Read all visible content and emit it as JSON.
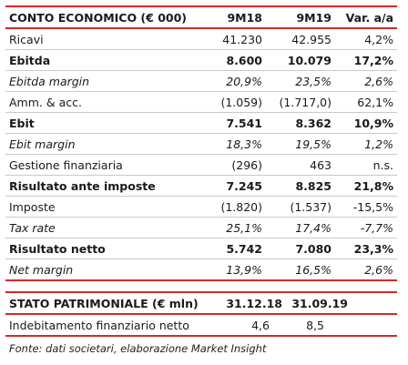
{
  "income_table": {
    "headers": [
      "CONTO ECONOMICO (€ 000)",
      "9M18",
      "9M19",
      "Var. a/a"
    ],
    "rows": [
      {
        "label": "Ricavi",
        "v1": "41.230",
        "v2": "42.955",
        "v3": "4,2%",
        "style": ""
      },
      {
        "label": "Ebitda",
        "v1": "8.600",
        "v2": "10.079",
        "v3": "17,2%",
        "style": "bold"
      },
      {
        "label": "Ebitda margin",
        "v1": "20,9%",
        "v2": "23,5%",
        "v3": "2,6%",
        "style": "ital"
      },
      {
        "label": "Amm. & acc.",
        "v1": "(1.059)",
        "v2": "(1.717,0)",
        "v3": "62,1%",
        "style": ""
      },
      {
        "label": "Ebit",
        "v1": "7.541",
        "v2": "8.362",
        "v3": "10,9%",
        "style": "bold"
      },
      {
        "label": "Ebit margin",
        "v1": "18,3%",
        "v2": "19,5%",
        "v3": "1,2%",
        "style": "ital"
      },
      {
        "label": "Gestione finanziaria",
        "v1": "(296)",
        "v2": "463",
        "v3": "n.s.",
        "style": ""
      },
      {
        "label": "Risultato ante imposte",
        "v1": "7.245",
        "v2": "8.825",
        "v3": "21,8%",
        "style": "bold"
      },
      {
        "label": "Imposte",
        "v1": "(1.820)",
        "v2": "(1.537)",
        "v3": "-15,5%",
        "style": ""
      },
      {
        "label": "Tax rate",
        "v1": "25,1%",
        "v2": "17,4%",
        "v3": "-7,7%",
        "style": "ital"
      },
      {
        "label": "Risultato netto",
        "v1": "5.742",
        "v2": "7.080",
        "v3": "23,3%",
        "style": "bold"
      },
      {
        "label": "Net margin",
        "v1": "13,9%",
        "v2": "16,5%",
        "v3": "2,6%",
        "style": "ital"
      }
    ]
  },
  "balance_table": {
    "headers": [
      "STATO PATRIMONIALE (€ mln)",
      "31.12.18",
      "31.09.19"
    ],
    "rows": [
      {
        "label": "Indebitamento finanziario netto",
        "v1": "4,6",
        "v2": "8,5"
      }
    ]
  },
  "source_note": "Fonte: dati societari, elaborazione Market Insight",
  "colors": {
    "accent": "#d42a25",
    "separator": "#c9c9c9"
  }
}
